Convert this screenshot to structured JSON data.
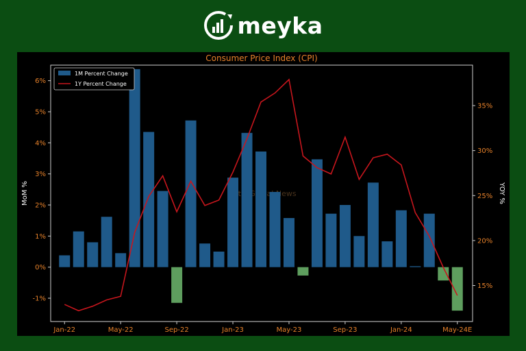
{
  "brand": {
    "name": "meyka"
  },
  "watermark": "Metis Global News",
  "colors": {
    "background": "#0b4d12",
    "panel": "#000000",
    "bar_positive": "#1f5a8a",
    "bar_negative": "#5e9e5e",
    "line": "#c8161d",
    "title": "#e8822a",
    "tick_left": "#e8822a",
    "tick_right": "#e8822a",
    "tick_bottom": "#e8822a"
  },
  "chart_data": {
    "type": "bar",
    "title": "Consumer Price Index (CPI)",
    "ylabel": "MoM %",
    "y2label": "YOY %",
    "ylim": [
      -1.75,
      6.5
    ],
    "y2lim": [
      11.0,
      39.5
    ],
    "yticks": [
      -1,
      0,
      1,
      2,
      3,
      4,
      5,
      6
    ],
    "ytick_labels": [
      "-1%",
      "0%",
      "1%",
      "2%",
      "3%",
      "4%",
      "5%",
      "6%"
    ],
    "y2ticks": [
      15,
      20,
      25,
      30,
      35
    ],
    "y2tick_labels": [
      "15%",
      "20%",
      "25%",
      "30%",
      "35%"
    ],
    "xtick_positions": [
      0,
      4,
      8,
      12,
      16,
      20,
      24,
      28
    ],
    "xtick_labels": [
      "Jan-22",
      "May-22",
      "Sep-22",
      "Jan-23",
      "May-23",
      "Sep-23",
      "Jan-24",
      "May-24E"
    ],
    "legend": {
      "placement": "top-left",
      "entries": [
        {
          "label": "1M Percent Change",
          "kind": "bar"
        },
        {
          "label": "1Y Percent Change",
          "kind": "line"
        }
      ]
    },
    "grid": false,
    "series": [
      {
        "name": "1M Percent Change",
        "kind": "bar",
        "values": [
          0.38,
          1.15,
          0.8,
          1.62,
          0.45,
          6.37,
          4.35,
          2.45,
          -1.15,
          4.72,
          0.76,
          0.5,
          2.88,
          4.32,
          3.72,
          2.42,
          1.58,
          -0.27,
          3.47,
          1.72,
          2.0,
          1.0,
          2.72,
          0.83,
          1.83,
          0.03,
          1.72,
          -0.43,
          -1.4
        ]
      },
      {
        "name": "1Y Percent Change",
        "kind": "line",
        "values": [
          12.9,
          12.2,
          12.7,
          13.4,
          13.8,
          20.9,
          24.9,
          27.2,
          23.2,
          26.6,
          23.9,
          24.5,
          27.6,
          31.3,
          35.4,
          36.4,
          37.9,
          29.4,
          28.1,
          27.4,
          31.5,
          26.8,
          29.2,
          29.6,
          28.4,
          23.1,
          20.5,
          17.0,
          13.9
        ]
      }
    ]
  }
}
